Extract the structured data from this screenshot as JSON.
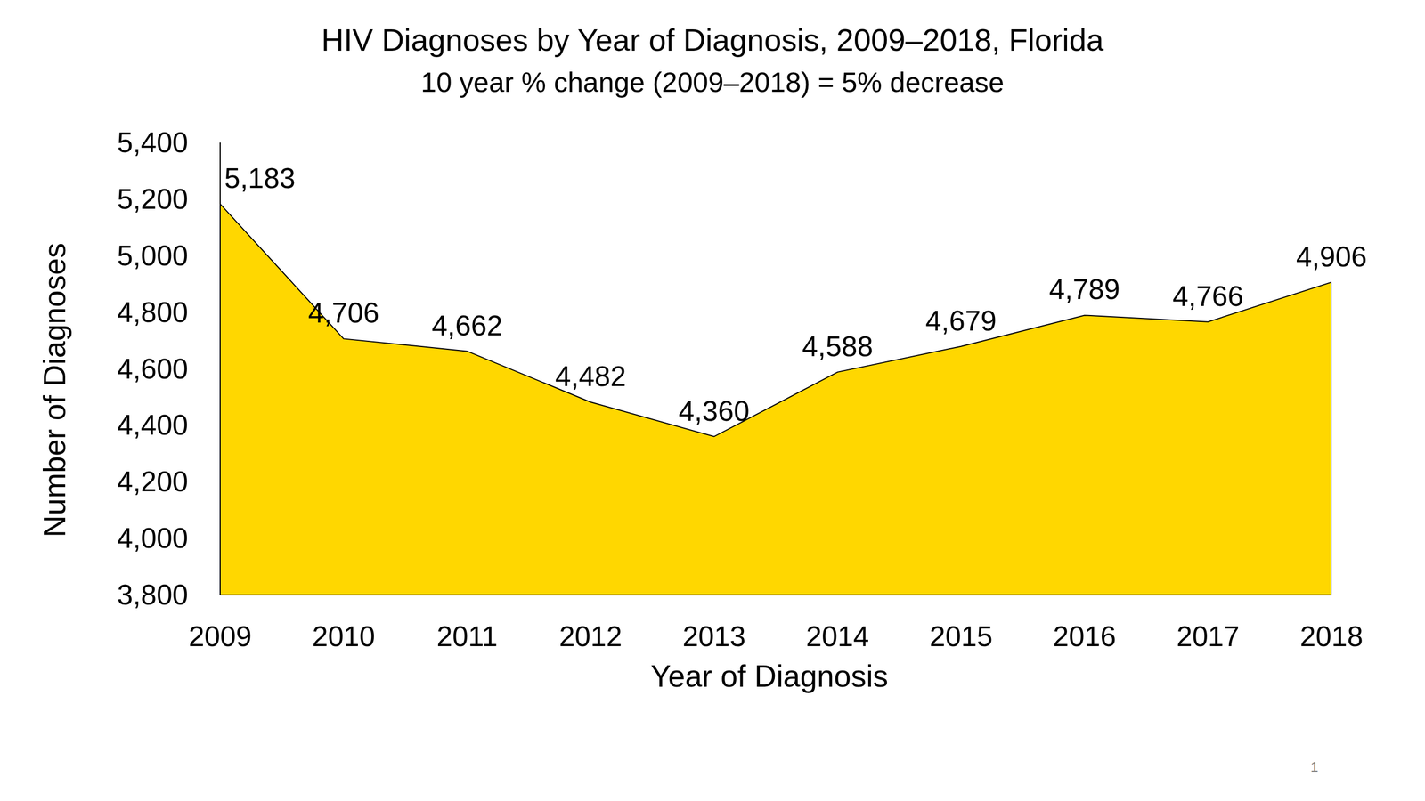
{
  "chart_data": {
    "type": "area",
    "title": "HIV Diagnoses by Year of Diagnosis, 2009–2018, Florida",
    "subtitle": "10 year % change (2009–2018) = 5% decrease",
    "x_label": "Year of Diagnosis",
    "y_label": "Number of Diagnoses",
    "annotations": [
      "1"
    ],
    "categories": [
      "2009",
      "2010",
      "2011",
      "2012",
      "2013",
      "2014",
      "2015",
      "2016",
      "2017",
      "2018"
    ],
    "values": [
      5183,
      4706,
      4662,
      4482,
      4360,
      4588,
      4679,
      4789,
      4766,
      4906
    ],
    "value_labels": [
      "5,183",
      "4,706",
      "4,662",
      "4,482",
      "4,360",
      "4,588",
      "4,679",
      "4,789",
      "4,766",
      "4,906"
    ],
    "color": "#FFD700",
    "ylim": [
      3800,
      5400
    ],
    "yticks": [
      {
        "value": 3800,
        "label": "3,800"
      },
      {
        "value": 4000,
        "label": "4,000"
      },
      {
        "value": 4200,
        "label": "4,200"
      },
      {
        "value": 4400,
        "label": "4,400"
      },
      {
        "value": 4600,
        "label": "4,600"
      },
      {
        "value": 4800,
        "label": "4,800"
      },
      {
        "value": 5000,
        "label": "5,000"
      },
      {
        "value": 5200,
        "label": "5,200"
      },
      {
        "value": 5400,
        "label": "5,400"
      }
    ],
    "grid": false,
    "data_labels": true
  }
}
